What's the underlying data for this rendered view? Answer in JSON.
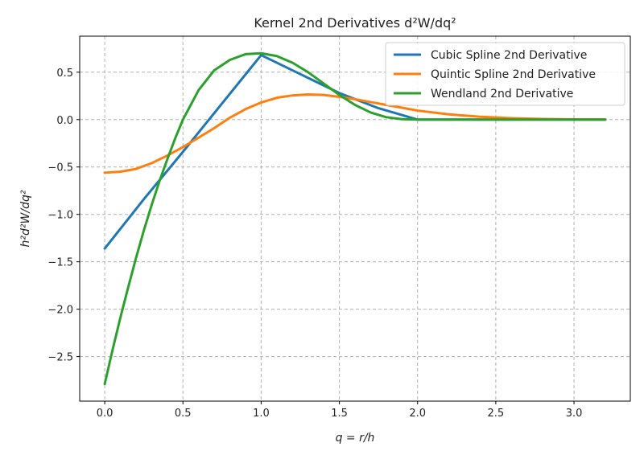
{
  "chart_data": {
    "type": "line",
    "title": "Kernel 2nd Derivatives d²W/dq²",
    "xlabel": "q = r/h",
    "ylabel": "h²d²W/dq²",
    "xlim": [
      -0.16,
      3.36
    ],
    "ylim": [
      -2.97,
      0.88
    ],
    "xticks": [
      0.0,
      0.5,
      1.0,
      1.5,
      2.0,
      2.5,
      3.0
    ],
    "xtick_labels": [
      "0.0",
      "0.5",
      "1.0",
      "1.5",
      "2.0",
      "2.5",
      "3.0"
    ],
    "yticks": [
      0.5,
      0.0,
      -0.5,
      -1.0,
      -1.5,
      -2.0,
      -2.5
    ],
    "ytick_labels": [
      "0.5",
      "0.0",
      "−0.5",
      "−1.0",
      "−1.5",
      "−2.0",
      "−2.5"
    ],
    "grid": true,
    "legend_position": "top-right",
    "series": [
      {
        "name": "Cubic Spline 2nd Derivative",
        "color": "#1f77b4",
        "x": [
          0.0,
          0.25,
          0.5,
          0.75,
          1.0,
          1.25,
          1.5,
          1.75,
          2.0,
          2.5,
          3.0,
          3.2
        ],
        "y": [
          -1.36,
          -0.84,
          -0.34,
          0.17,
          0.68,
          0.48,
          0.28,
          0.12,
          0.0,
          0.0,
          0.0,
          0.0
        ]
      },
      {
        "name": "Quintic Spline 2nd Derivative",
        "color": "#ff7f0e",
        "x": [
          0.0,
          0.1,
          0.2,
          0.3,
          0.4,
          0.5,
          0.6,
          0.7,
          0.8,
          0.9,
          1.0,
          1.1,
          1.2,
          1.3,
          1.4,
          1.5,
          1.6,
          1.7,
          1.8,
          1.9,
          2.0,
          2.2,
          2.4,
          2.6,
          2.8,
          3.0,
          3.2
        ],
        "y": [
          -0.56,
          -0.55,
          -0.52,
          -0.46,
          -0.38,
          -0.29,
          -0.19,
          -0.09,
          0.02,
          0.11,
          0.18,
          0.23,
          0.255,
          0.265,
          0.26,
          0.24,
          0.215,
          0.185,
          0.155,
          0.125,
          0.095,
          0.055,
          0.03,
          0.015,
          0.006,
          0.002,
          0.0
        ]
      },
      {
        "name": "Wendland 2nd Derivative",
        "color": "#2ca02c",
        "x": [
          0.0,
          0.05,
          0.1,
          0.15,
          0.2,
          0.25,
          0.3,
          0.35,
          0.4,
          0.45,
          0.5,
          0.6,
          0.7,
          0.8,
          0.9,
          1.0,
          1.1,
          1.2,
          1.3,
          1.4,
          1.5,
          1.6,
          1.7,
          1.8,
          1.9,
          2.0,
          2.5,
          3.0,
          3.2
        ],
        "y": [
          -2.79,
          -2.43,
          -2.09,
          -1.77,
          -1.46,
          -1.17,
          -0.9,
          -0.65,
          -0.42,
          -0.2,
          0.0,
          0.31,
          0.52,
          0.63,
          0.69,
          0.7,
          0.67,
          0.6,
          0.5,
          0.38,
          0.26,
          0.155,
          0.075,
          0.025,
          0.004,
          0.0,
          0.0,
          0.0,
          0.0
        ]
      }
    ]
  }
}
